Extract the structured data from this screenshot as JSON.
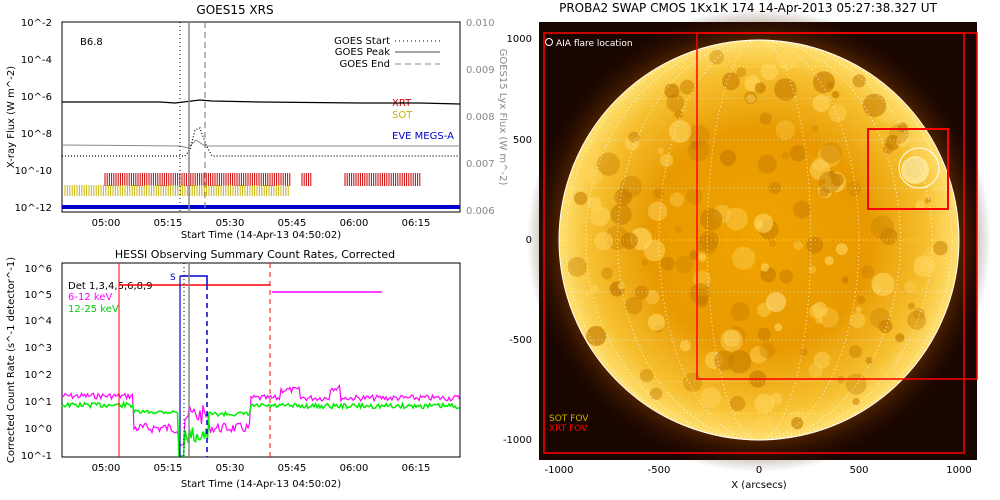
{
  "chart_data": [
    {
      "type": "line",
      "title": "GOES15 XRS",
      "ylabel": "X-ray Flux (W m^-2)",
      "ylabel2": "GOES15 Lyx Flux (W m^-2)",
      "xlabel": "Start Time (14-Apr-13 04:50:02)",
      "x_ticks": [
        "05:00",
        "05:15",
        "05:30",
        "05:45",
        "06:00",
        "06:15"
      ],
      "y_ticks": [
        "10^-2",
        "10^-4",
        "10^-6",
        "10^-8",
        "10^-10",
        "10^-12"
      ],
      "y2_ticks": [
        "0.010",
        "0.009",
        "0.008",
        "0.007",
        "0.006"
      ],
      "class_label": "B6.8",
      "legend": [
        {
          "name": "GOES Start",
          "style": "dotted"
        },
        {
          "name": "GOES Peak",
          "style": "solid"
        },
        {
          "name": "GOES End",
          "style": "dashed"
        }
      ],
      "instrument_labels": [
        {
          "name": "XRT",
          "color": "#cc0000"
        },
        {
          "name": "SOT",
          "color": "#c8b400"
        },
        {
          "name": "EVE MEGS-A",
          "color": "#0000cc"
        }
      ],
      "marker_times": {
        "start": "05:21",
        "peak": "05:23",
        "end": "05:27"
      }
    },
    {
      "type": "line",
      "title": "HESSI Observing Summary Count Rates, Corrected",
      "ylabel": "Corrected Count Rate (s^-1 detector^-1)",
      "xlabel": "Start Time (14-Apr-13 04:50:02)",
      "x_ticks": [
        "05:00",
        "05:15",
        "05:30",
        "05:45",
        "06:00",
        "06:15"
      ],
      "y_ticks": [
        "10^6",
        "10^5",
        "10^4",
        "10^3",
        "10^2",
        "10^1",
        "10^0",
        "10^-1"
      ],
      "series": [
        {
          "name": "Det 1,3,4,5,6,8,9",
          "color": "#000000"
        },
        {
          "name": "6-12 keV",
          "color": "#ff00ff"
        },
        {
          "name": "12-25 keV",
          "color": "#00ee00"
        }
      ],
      "annotation": "S"
    },
    {
      "type": "image",
      "title": "PROBA2 SWAP CMOS 1Kx1K 174 14-Apr-2013 05:27:38.327 UT",
      "xlabel": "X (arcsecs)",
      "x_ticks": [
        "-1000",
        "-500",
        "0",
        "500",
        "1000"
      ],
      "y_ticks": [
        "1000",
        "500",
        "0",
        "-500",
        "-1000"
      ],
      "labels": {
        "flare": "AIA flare location",
        "sot_fov": "SOT FOV",
        "xrt_fov": "XRT FOV"
      },
      "colors": {
        "sot": "#c8b400",
        "xrt": "#ff0000",
        "sun": "#f3b000"
      }
    }
  ]
}
